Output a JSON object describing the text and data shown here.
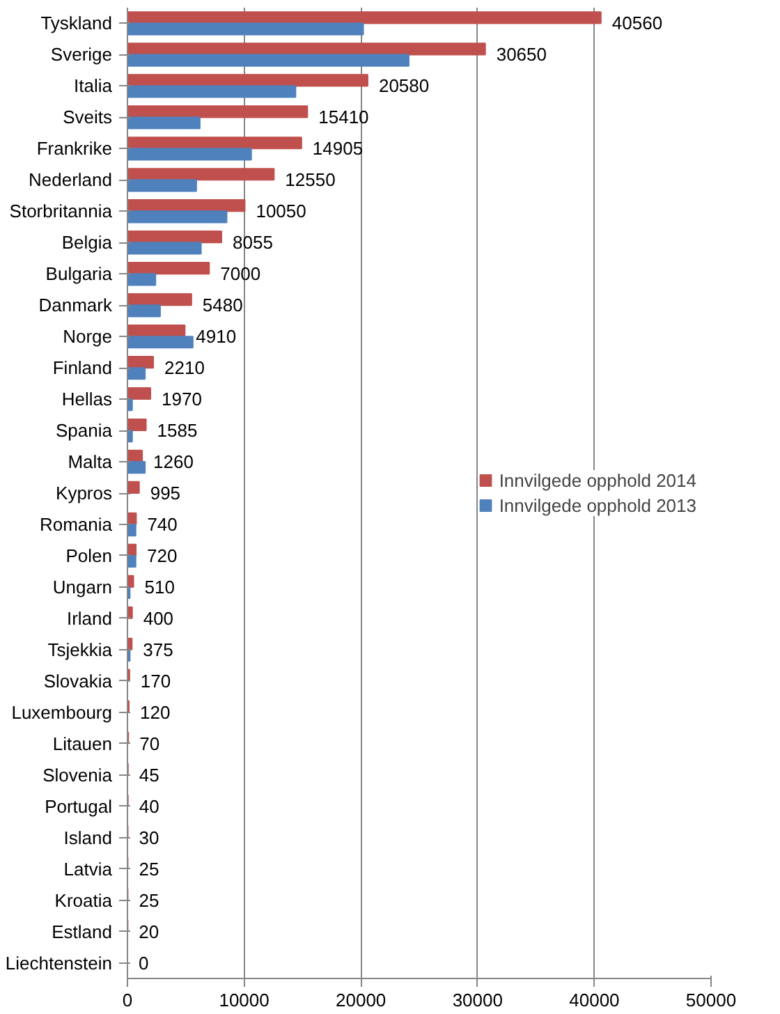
{
  "chart_data": {
    "type": "bar",
    "orientation": "horizontal",
    "categories": [
      "Tyskland",
      "Sverige",
      "Italia",
      "Sveits",
      "Frankrike",
      "Nederland",
      "Storbritannia",
      "Belgia",
      "Bulgaria",
      "Danmark",
      "Norge",
      "Finland",
      "Hellas",
      "Spania",
      "Malta",
      "Kypros",
      "Romania",
      "Polen",
      "Ungarn",
      "Irland",
      "Tsjekkia",
      "Slovakia",
      "Luxembourg",
      "Litauen",
      "Slovenia",
      "Portugal",
      "Island",
      "Latvia",
      "Kroatia",
      "Estland",
      "Liechtenstein"
    ],
    "series": [
      {
        "name": "Innvilgede opphold 2014",
        "color": "#c0504d",
        "values": [
          40560,
          30650,
          20580,
          15410,
          14905,
          12550,
          10050,
          8055,
          7000,
          5480,
          4910,
          2210,
          1970,
          1585,
          1260,
          995,
          740,
          720,
          510,
          400,
          375,
          170,
          120,
          70,
          45,
          40,
          30,
          25,
          25,
          20,
          0
        ],
        "value_labels": [
          "40560",
          "30650",
          "20580",
          "15410",
          "14905",
          "12550",
          "10050",
          "8055",
          "7000",
          "5480",
          "4910",
          "2210",
          "1970",
          "1585",
          "1260",
          "995",
          "740",
          "720",
          "510",
          "400",
          "375",
          "170",
          "120",
          "70",
          "45",
          "40",
          "30",
          "25",
          "25",
          "20",
          "0"
        ]
      },
      {
        "name": "Innvilgede opphold 2013",
        "color": "#4f81bd",
        "values": [
          20200,
          24100,
          14400,
          6200,
          10600,
          5900,
          8500,
          6300,
          2400,
          2800,
          5600,
          1500,
          400,
          400,
          1500,
          0,
          700,
          700,
          200,
          0,
          200,
          0,
          0,
          0,
          0,
          0,
          0,
          0,
          0,
          0,
          0
        ]
      }
    ],
    "xlim": [
      0,
      50000
    ],
    "xticks": [
      0,
      10000,
      20000,
      30000,
      40000,
      50000
    ],
    "grid": "x",
    "legend": "right"
  }
}
